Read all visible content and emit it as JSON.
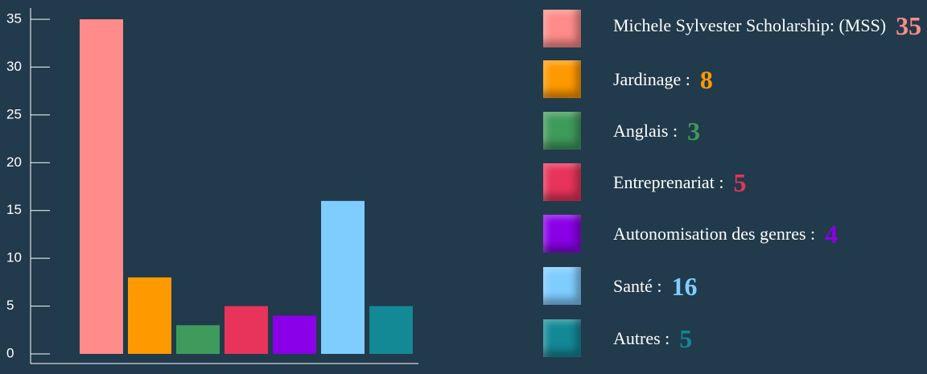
{
  "chart_data": {
    "type": "bar",
    "categories": [
      "Michele Sylvester Scholarship: (MSS)",
      "Jardinage :",
      "Anglais :",
      "Entreprenariat :",
      "Autonomisation des genres :",
      "Santé :",
      "Autres :"
    ],
    "values": [
      35,
      8,
      3,
      5,
      4,
      16,
      5
    ],
    "colors": [
      "#ff8c8a",
      "#ff9900",
      "#3f9b5c",
      "#e8335a",
      "#8a00e8",
      "#7fcdff",
      "#138995"
    ],
    "ylim": [
      0,
      35
    ],
    "yticks": [
      0,
      5,
      10,
      15,
      20,
      25,
      30,
      35
    ],
    "grid": false,
    "legend": "right"
  }
}
